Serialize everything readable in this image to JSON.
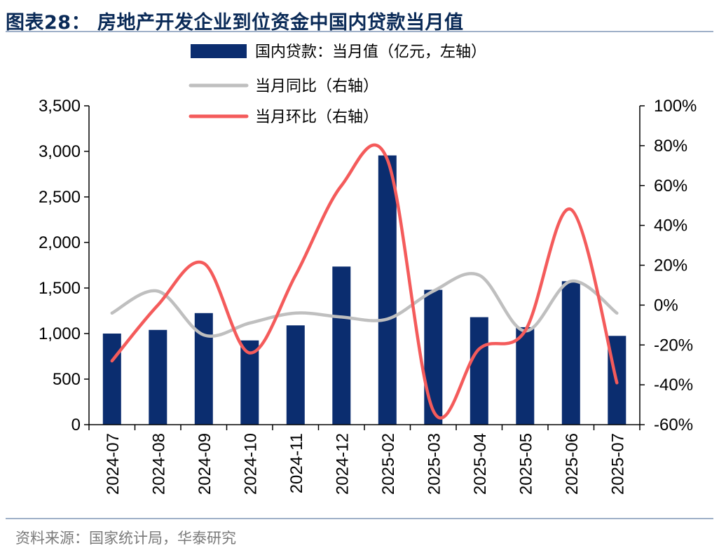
{
  "title": "图表28： 房地产开发企业到位资金中国内贷款当月值",
  "source": "资料来源：国家统计局，华泰研究",
  "chart_data": {
    "type": "bar+line",
    "categories": [
      "2024-07",
      "2024-08",
      "2024-09",
      "2024-10",
      "2024-11",
      "2024-12",
      "2025-02",
      "2025-03",
      "2025-04",
      "2025-05",
      "2025-06",
      "2025-07"
    ],
    "series": [
      {
        "name": "国内贷款：当月值（亿元，左轴）",
        "kind": "bar",
        "axis": "left",
        "color": "#0b2d6f",
        "values": [
          1000,
          1040,
          1225,
          925,
          1090,
          1735,
          2955,
          1480,
          1180,
          1070,
          1575,
          975
        ]
      },
      {
        "name": "当月同比（右轴）",
        "kind": "line",
        "axis": "right",
        "color": "#bfbfbf",
        "values": [
          -4,
          7,
          -15,
          -9,
          -4,
          -6,
          -7,
          7,
          15,
          -13,
          12,
          -4
        ]
      },
      {
        "name": "当月环比（右轴）",
        "kind": "line",
        "axis": "right",
        "color": "#f45b5b",
        "values": [
          -28,
          0,
          21,
          -24,
          15,
          60,
          73,
          -53,
          -22,
          -13,
          48,
          -39
        ]
      }
    ],
    "yleft": {
      "min": 0,
      "max": 3500,
      "ticks": [
        "0",
        "500",
        "1,000",
        "1,500",
        "2,000",
        "2,500",
        "3,000",
        "3,500"
      ]
    },
    "yright": {
      "min": -60,
      "max": 100,
      "ticks": [
        "-60%",
        "-40%",
        "-20%",
        "0%",
        "20%",
        "40%",
        "60%",
        "80%",
        "100%"
      ]
    },
    "legend_position": "top"
  }
}
